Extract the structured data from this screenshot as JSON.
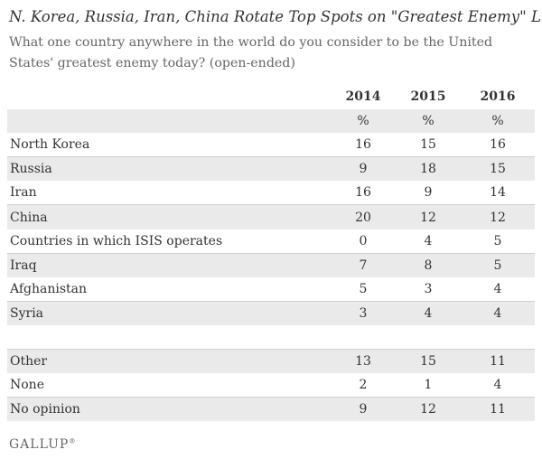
{
  "title": "N. Korea, Russia, Iran, China Rotate Top Spots on \"Greatest Enemy\" List",
  "subtitle": "What one country anywhere in the world do you consider to be the United States' greatest enemy today? (open-ended)",
  "logo": "GALLUP",
  "logo_mark": "®",
  "chart_data": {
    "type": "table",
    "columns": [
      "2014",
      "2015",
      "2016"
    ],
    "unit_row": [
      "%",
      "%",
      "%"
    ],
    "rows": [
      {
        "label": "North Korea",
        "values": [
          "16",
          "15",
          "16"
        ]
      },
      {
        "label": "Russia",
        "values": [
          "9",
          "18",
          "15"
        ]
      },
      {
        "label": "Iran",
        "values": [
          "16",
          "9",
          "14"
        ]
      },
      {
        "label": "China",
        "values": [
          "20",
          "12",
          "12"
        ]
      },
      {
        "label": "Countries in which ISIS operates",
        "values": [
          "0",
          "4",
          "5"
        ]
      },
      {
        "label": "Iraq",
        "values": [
          "7",
          "8",
          "5"
        ]
      },
      {
        "label": "Afghanistan",
        "values": [
          "5",
          "3",
          "4"
        ]
      },
      {
        "label": "Syria",
        "values": [
          "3",
          "4",
          "4"
        ]
      },
      {
        "label": "Other",
        "values": [
          "13",
          "15",
          "11"
        ]
      },
      {
        "label": "None",
        "values": [
          "2",
          "1",
          "4"
        ]
      },
      {
        "label": "No opinion",
        "values": [
          "9",
          "12",
          "11"
        ]
      }
    ]
  }
}
